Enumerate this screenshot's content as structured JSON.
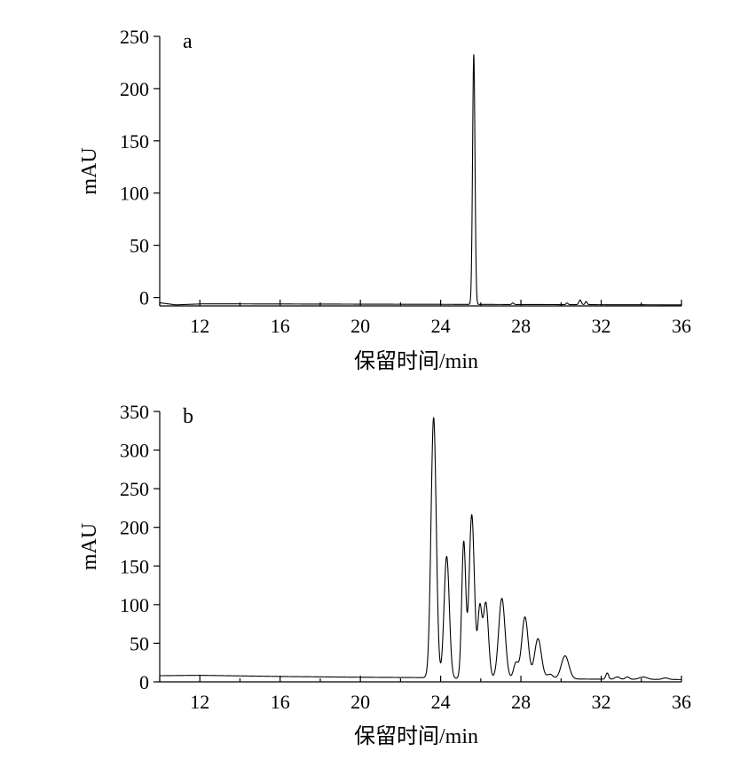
{
  "chart_data": [
    {
      "type": "line",
      "panel_label": "a",
      "xlabel": "保留时间/min",
      "ylabel": "mAU",
      "xlim": [
        10,
        36
      ],
      "ylim": [
        -8,
        250
      ],
      "xticks": [
        12,
        16,
        20,
        24,
        28,
        32,
        36
      ],
      "yticks": [
        0,
        50,
        100,
        150,
        200,
        250
      ],
      "grid": false,
      "baseline": [
        [
          10,
          -5
        ],
        [
          10.8,
          -7
        ],
        [
          12.2,
          -6
        ],
        [
          24,
          -6.5
        ],
        [
          36,
          -7
        ]
      ],
      "peaks": [
        {
          "x": 25.65,
          "height": 239,
          "width": 0.06
        },
        {
          "x": 27.6,
          "height": 1.5,
          "width": 0.05
        },
        {
          "x": 30.3,
          "height": 1.5,
          "width": 0.05
        },
        {
          "x": 30.95,
          "height": 4.5,
          "width": 0.06
        },
        {
          "x": 31.25,
          "height": 3,
          "width": 0.05
        }
      ]
    },
    {
      "type": "line",
      "panel_label": "b",
      "xlabel": "保留时间/min",
      "ylabel": "mAU",
      "xlim": [
        10,
        36
      ],
      "ylim": [
        0,
        350
      ],
      "xticks": [
        12,
        16,
        20,
        24,
        28,
        32,
        36
      ],
      "yticks": [
        0,
        50,
        100,
        150,
        200,
        250,
        300,
        350
      ],
      "grid": false,
      "baseline": [
        [
          10,
          8
        ],
        [
          12,
          8.5
        ],
        [
          16,
          7
        ],
        [
          20,
          6
        ],
        [
          23.3,
          5.5
        ],
        [
          24,
          4.5
        ],
        [
          28,
          4
        ],
        [
          32,
          3.5
        ],
        [
          36,
          3
        ]
      ],
      "peaks": [
        {
          "x": 23.65,
          "height": 337,
          "width": 0.13
        },
        {
          "x": 24.3,
          "height": 158,
          "width": 0.13
        },
        {
          "x": 25.15,
          "height": 176,
          "width": 0.1
        },
        {
          "x": 25.55,
          "height": 212,
          "width": 0.13
        },
        {
          "x": 25.95,
          "height": 88,
          "width": 0.1
        },
        {
          "x": 26.25,
          "height": 98,
          "width": 0.13
        },
        {
          "x": 27.05,
          "height": 104,
          "width": 0.16
        },
        {
          "x": 27.75,
          "height": 20,
          "width": 0.12
        },
        {
          "x": 28.2,
          "height": 80,
          "width": 0.16
        },
        {
          "x": 28.85,
          "height": 52,
          "width": 0.17
        },
        {
          "x": 29.45,
          "height": 6,
          "width": 0.15
        },
        {
          "x": 30.2,
          "height": 30,
          "width": 0.19
        },
        {
          "x": 32.3,
          "height": 8,
          "width": 0.07
        },
        {
          "x": 32.8,
          "height": 3,
          "width": 0.12
        },
        {
          "x": 33.3,
          "height": 3,
          "width": 0.1
        },
        {
          "x": 34.1,
          "height": 3,
          "width": 0.2
        },
        {
          "x": 35.2,
          "height": 2,
          "width": 0.15
        }
      ]
    }
  ]
}
